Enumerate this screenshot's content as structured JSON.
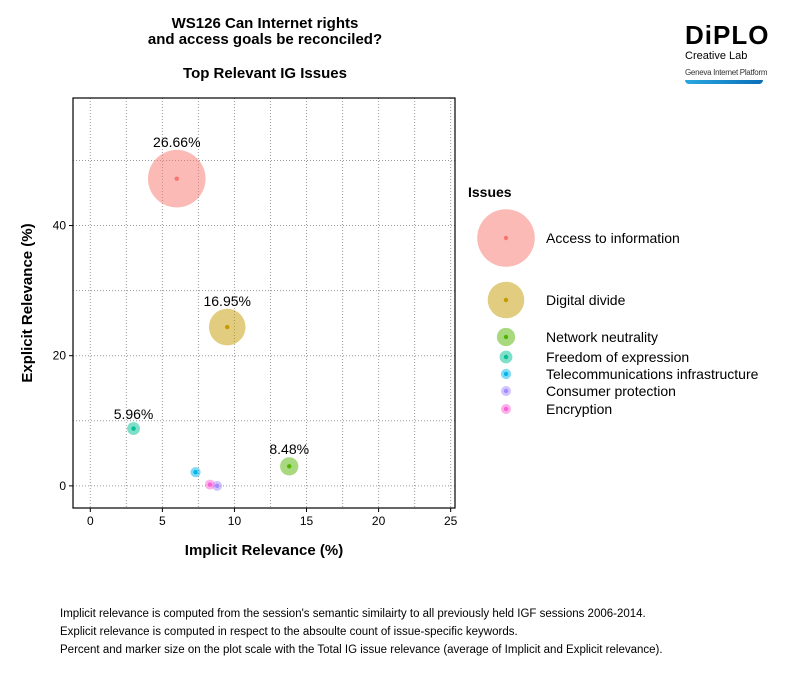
{
  "title_lines": [
    "WS126 Can Internet rights",
    "and access goals be reconciled?"
  ],
  "subtitle": "Top Relevant IG Issues",
  "logo": {
    "brand": "DiPLO",
    "line1": "Creative Lab",
    "line2": "Geneva Internet Platform"
  },
  "chart_data": {
    "type": "scatter",
    "title": "Top Relevant IG Issues",
    "xlabel": "Implicit Relevance (%)",
    "ylabel": "Explicit Relevance (%)",
    "xlim": [
      -1.2,
      25.3
    ],
    "ylim": [
      -3.4,
      59.6
    ],
    "xticks": [
      0,
      5,
      10,
      15,
      20,
      25
    ],
    "yticks": [
      0,
      20,
      40
    ],
    "grid": true,
    "legend_title": "Issues",
    "legend_position": "right",
    "series": [
      {
        "name": "Access to information",
        "x": 6.0,
        "y": 47.2,
        "total_relevance": 26.66,
        "label": "26.66%",
        "color": "#F8766D"
      },
      {
        "name": "Digital divide",
        "x": 9.5,
        "y": 24.4,
        "total_relevance": 16.95,
        "label": "16.95%",
        "color": "#C49A00"
      },
      {
        "name": "Network neutrality",
        "x": 13.8,
        "y": 3.0,
        "total_relevance": 8.48,
        "label": "8.48%",
        "color": "#53B400"
      },
      {
        "name": "Freedom of expression",
        "x": 3.0,
        "y": 8.8,
        "total_relevance": 5.96,
        "label": "5.96%",
        "color": "#00C094"
      },
      {
        "name": "Telecommunications infrastructure",
        "x": 7.3,
        "y": 2.1,
        "total_relevance": 4.7,
        "label": "",
        "color": "#00B6EB"
      },
      {
        "name": "Consumer protection",
        "x": 8.8,
        "y": 0.0,
        "total_relevance": 4.4,
        "label": "",
        "color": "#A58AFF"
      },
      {
        "name": "Encryption",
        "x": 8.3,
        "y": 0.2,
        "total_relevance": 4.2,
        "label": "",
        "color": "#FB61D7"
      }
    ]
  },
  "footnotes": [
    "Implicit relevance is computed from the session's semantic similairty to all previously held IGF sessions 2006-2014.",
    "Explicit relevance is computed in respect to the absoulte count of issue-specific keywords.",
    "Percent and marker size on the plot scale with the Total IG issue relevance (average of Implicit and Explicit relevance)."
  ]
}
